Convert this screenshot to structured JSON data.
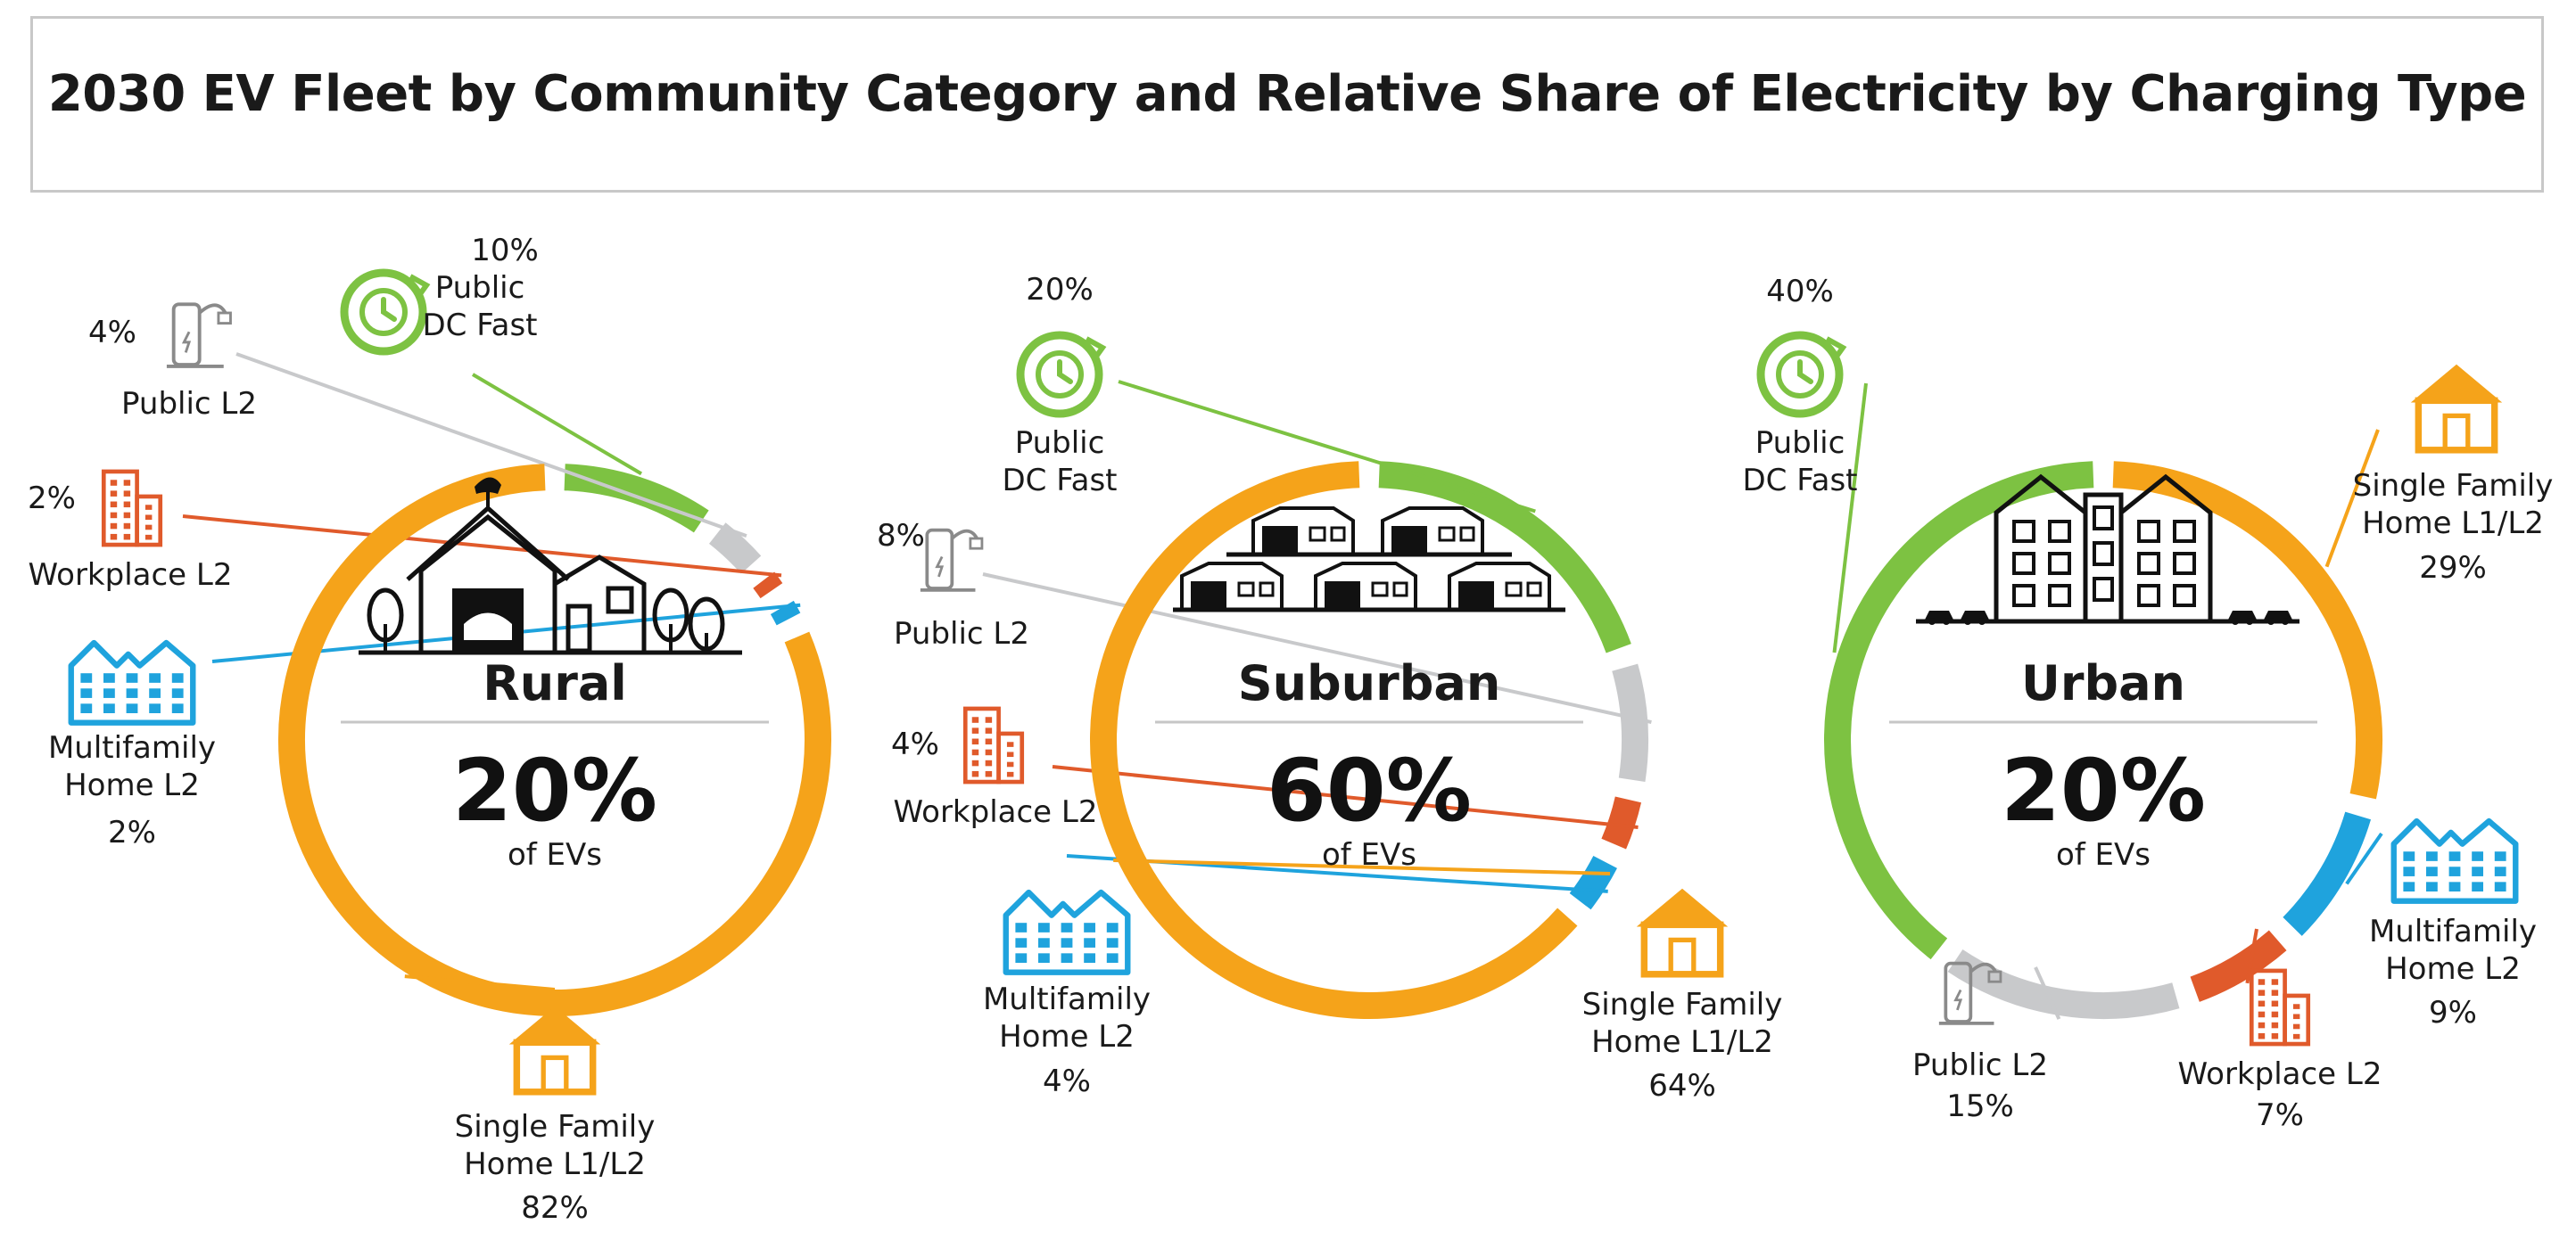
{
  "chart_data": {
    "type": "pie",
    "title": "2030 EV Fleet by Community Category and Relative Share of Electricity by Charging Type",
    "share_unit": "of EVs",
    "colors": {
      "Public DC Fast": "#7dc242",
      "Public L2": "#c8c9cb",
      "Workplace L2": "#e05a2b",
      "Multifamily Home L2": "#1fa3dd",
      "Single Family Home L1/L2": "#f5a31a"
    },
    "charts": [
      {
        "name": "Rural",
        "fleet_share": "20%",
        "slices": [
          {
            "category": "Public DC Fast",
            "label_lines": [
              "Public",
              "DC Fast"
            ],
            "value": 10,
            "value_label": "10%",
            "icon": "stopwatch-icon"
          },
          {
            "category": "Public L2",
            "label_lines": [
              "Public L2"
            ],
            "value": 4,
            "value_label": "4%",
            "icon": "charging-station-icon"
          },
          {
            "category": "Workplace L2",
            "label_lines": [
              "Workplace L2"
            ],
            "value": 2,
            "value_label": "2%",
            "icon": "office-building-icon"
          },
          {
            "category": "Multifamily Home L2",
            "label_lines": [
              "Multifamily",
              "Home L2"
            ],
            "value": 2,
            "value_label": "2%",
            "icon": "apartment-building-icon"
          },
          {
            "category": "Single Family Home L1/L2",
            "label_lines": [
              "Single Family",
              "Home L1/L2"
            ],
            "value": 82,
            "value_label": "82%",
            "icon": "house-icon"
          }
        ]
      },
      {
        "name": "Suburban",
        "fleet_share": "60%",
        "slices": [
          {
            "category": "Public DC Fast",
            "label_lines": [
              "Public",
              "DC Fast"
            ],
            "value": 20,
            "value_label": "20%",
            "icon": "stopwatch-icon"
          },
          {
            "category": "Public L2",
            "label_lines": [
              "Public L2"
            ],
            "value": 8,
            "value_label": "8%",
            "icon": "charging-station-icon"
          },
          {
            "category": "Workplace L2",
            "label_lines": [
              "Workplace L2"
            ],
            "value": 4,
            "value_label": "4%",
            "icon": "office-building-icon"
          },
          {
            "category": "Multifamily Home L2",
            "label_lines": [
              "Multifamily",
              "Home L2"
            ],
            "value": 4,
            "value_label": "4%",
            "icon": "apartment-building-icon"
          },
          {
            "category": "Single Family Home L1/L2",
            "label_lines": [
              "Single Family",
              "Home L1/L2"
            ],
            "value": 64,
            "value_label": "64%",
            "icon": "house-icon"
          }
        ]
      },
      {
        "name": "Urban",
        "fleet_share": "20%",
        "slices": [
          {
            "category": "Single Family Home L1/L2",
            "label_lines": [
              "Single Family",
              "Home L1/L2"
            ],
            "value": 29,
            "value_label": "29%",
            "icon": "house-icon"
          },
          {
            "category": "Multifamily Home L2",
            "label_lines": [
              "Multifamily",
              "Home L2"
            ],
            "value": 9,
            "value_label": "9%",
            "icon": "apartment-building-icon"
          },
          {
            "category": "Workplace L2",
            "label_lines": [
              "Workplace L2"
            ],
            "value": 7,
            "value_label": "7%",
            "icon": "office-building-icon"
          },
          {
            "category": "Public L2",
            "label_lines": [
              "Public L2"
            ],
            "value": 15,
            "value_label": "15%",
            "icon": "charging-station-icon"
          },
          {
            "category": "Public DC Fast",
            "label_lines": [
              "Public",
              "DC Fast"
            ],
            "value": 40,
            "value_label": "40%",
            "icon": "stopwatch-icon"
          }
        ]
      }
    ]
  }
}
